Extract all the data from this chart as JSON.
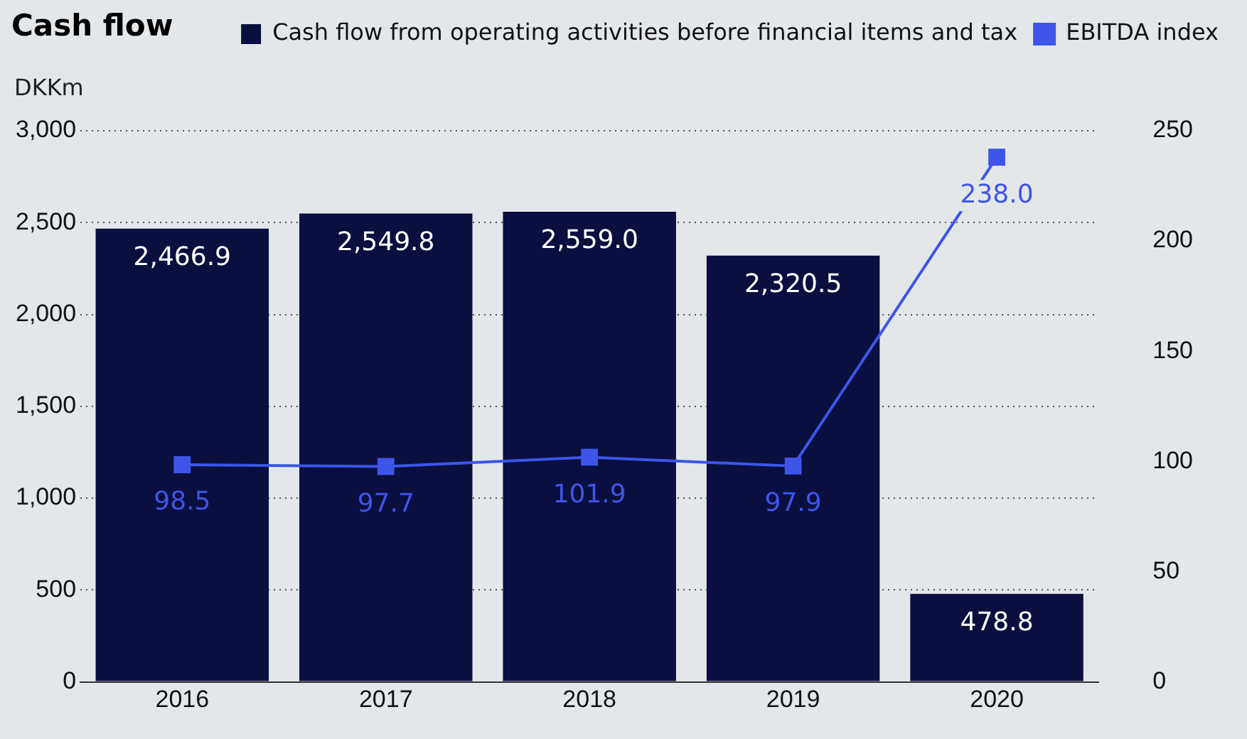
{
  "chart_data": {
    "type": "bar",
    "title": "Cash flow",
    "ylabel": "DKKm",
    "categories": [
      "2016",
      "2017",
      "2018",
      "2019",
      "2020"
    ],
    "series": [
      {
        "name": "Cash flow from operating activities before financial items and tax",
        "color": "#0a0f40",
        "values": [
          2466.9,
          2549.8,
          2559.0,
          2320.5,
          478.8
        ],
        "value_labels": [
          "2,466.9",
          "2,549.8",
          "2,559.0",
          "2,320.5",
          "478.8"
        ]
      },
      {
        "name": "EBITDA index",
        "type": "line",
        "axis": "y2",
        "color": "#3d55e8",
        "values": [
          98.5,
          97.7,
          101.9,
          97.9,
          238.0
        ],
        "value_labels": [
          "98.5",
          "97.7",
          "101.9",
          "97.9",
          "238.0"
        ]
      }
    ],
    "ylim": [
      0,
      3000
    ],
    "yticks": [
      {
        "value": 0,
        "label": "0"
      },
      {
        "value": 500,
        "label": "500"
      },
      {
        "value": 1000,
        "label": "1,000"
      },
      {
        "value": 1500,
        "label": "1,500"
      },
      {
        "value": 2000,
        "label": "2,000"
      },
      {
        "value": 2500,
        "label": "2,500"
      },
      {
        "value": 3000,
        "label": "3,000"
      }
    ],
    "y2lim": [
      0,
      250
    ],
    "y2ticks": [
      0,
      50,
      100,
      150,
      200,
      250
    ],
    "grid": "y",
    "legend": "top right",
    "marker": "square"
  }
}
